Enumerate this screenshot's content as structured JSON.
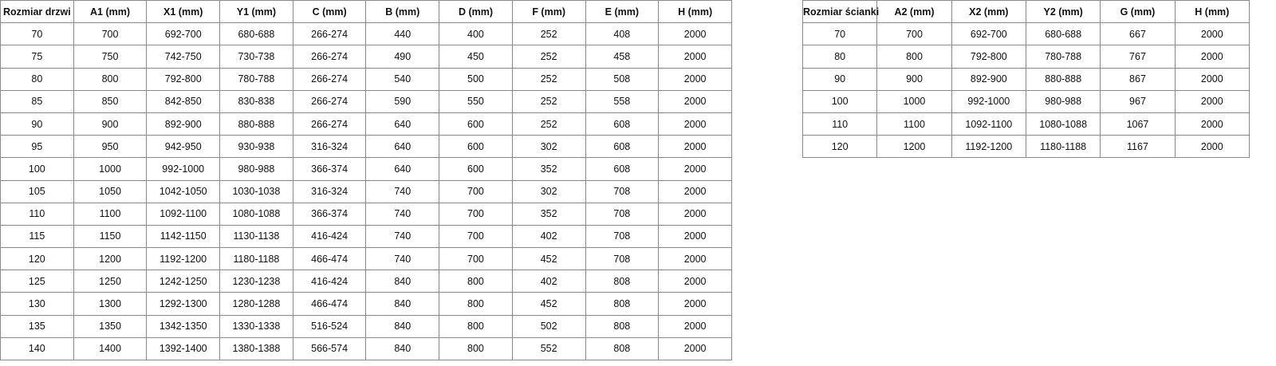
{
  "doors_table": {
    "headers": [
      "Rozmiar drzwi",
      "A1 (mm)",
      "X1 (mm)",
      "Y1 (mm)",
      "C (mm)",
      "B (mm)",
      "D (mm)",
      "F (mm)",
      "E (mm)",
      "H (mm)"
    ],
    "rows": [
      [
        "70",
        "700",
        "692-700",
        "680-688",
        "266-274",
        "440",
        "400",
        "252",
        "408",
        "2000"
      ],
      [
        "75",
        "750",
        "742-750",
        "730-738",
        "266-274",
        "490",
        "450",
        "252",
        "458",
        "2000"
      ],
      [
        "80",
        "800",
        "792-800",
        "780-788",
        "266-274",
        "540",
        "500",
        "252",
        "508",
        "2000"
      ],
      [
        "85",
        "850",
        "842-850",
        "830-838",
        "266-274",
        "590",
        "550",
        "252",
        "558",
        "2000"
      ],
      [
        "90",
        "900",
        "892-900",
        "880-888",
        "266-274",
        "640",
        "600",
        "252",
        "608",
        "2000"
      ],
      [
        "95",
        "950",
        "942-950",
        "930-938",
        "316-324",
        "640",
        "600",
        "302",
        "608",
        "2000"
      ],
      [
        "100",
        "1000",
        "992-1000",
        "980-988",
        "366-374",
        "640",
        "600",
        "352",
        "608",
        "2000"
      ],
      [
        "105",
        "1050",
        "1042-1050",
        "1030-1038",
        "316-324",
        "740",
        "700",
        "302",
        "708",
        "2000"
      ],
      [
        "110",
        "1100",
        "1092-1100",
        "1080-1088",
        "366-374",
        "740",
        "700",
        "352",
        "708",
        "2000"
      ],
      [
        "115",
        "1150",
        "1142-1150",
        "1130-1138",
        "416-424",
        "740",
        "700",
        "402",
        "708",
        "2000"
      ],
      [
        "120",
        "1200",
        "1192-1200",
        "1180-1188",
        "466-474",
        "740",
        "700",
        "452",
        "708",
        "2000"
      ],
      [
        "125",
        "1250",
        "1242-1250",
        "1230-1238",
        "416-424",
        "840",
        "800",
        "402",
        "808",
        "2000"
      ],
      [
        "130",
        "1300",
        "1292-1300",
        "1280-1288",
        "466-474",
        "840",
        "800",
        "452",
        "808",
        "2000"
      ],
      [
        "135",
        "1350",
        "1342-1350",
        "1330-1338",
        "516-524",
        "840",
        "800",
        "502",
        "808",
        "2000"
      ],
      [
        "140",
        "1400",
        "1392-1400",
        "1380-1388",
        "566-574",
        "840",
        "800",
        "552",
        "808",
        "2000"
      ]
    ]
  },
  "wall_table": {
    "headers": [
      "Rozmiar ścianki",
      "A2 (mm)",
      "X2 (mm)",
      "Y2 (mm)",
      "G (mm)",
      "H (mm)"
    ],
    "rows": [
      [
        "70",
        "700",
        "692-700",
        "680-688",
        "667",
        "2000"
      ],
      [
        "80",
        "800",
        "792-800",
        "780-788",
        "767",
        "2000"
      ],
      [
        "90",
        "900",
        "892-900",
        "880-888",
        "867",
        "2000"
      ],
      [
        "100",
        "1000",
        "992-1000",
        "980-988",
        "967",
        "2000"
      ],
      [
        "110",
        "1100",
        "1092-1100",
        "1080-1088",
        "1067",
        "2000"
      ],
      [
        "120",
        "1200",
        "1192-1200",
        "1180-1188",
        "1167",
        "2000"
      ]
    ]
  }
}
